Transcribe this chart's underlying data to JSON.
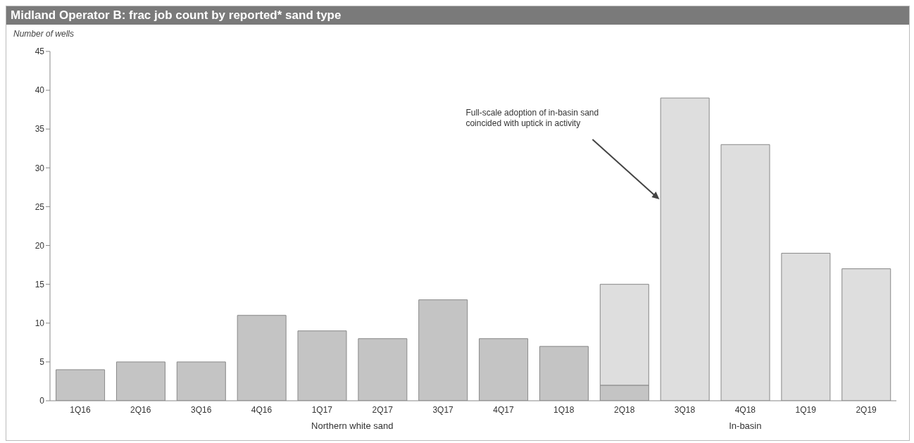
{
  "chart_data": {
    "type": "bar",
    "title": "Midland Operator B: frac job count by reported* sand type",
    "ylabel": "Number of wells",
    "categories": [
      "1Q16",
      "2Q16",
      "3Q16",
      "4Q16",
      "1Q17",
      "2Q17",
      "3Q17",
      "4Q17",
      "1Q18",
      "2Q18",
      "3Q18",
      "4Q18",
      "1Q19",
      "2Q19"
    ],
    "series": [
      {
        "name": "Northern white sand",
        "color": "#c4c4c4",
        "values": [
          4,
          5,
          5,
          11,
          9,
          8,
          13,
          8,
          7,
          2,
          null,
          null,
          null,
          null
        ]
      },
      {
        "name": "In-basin",
        "color": "#dedede",
        "values": [
          null,
          null,
          null,
          null,
          null,
          null,
          null,
          null,
          null,
          13,
          39,
          33,
          19,
          17
        ]
      }
    ],
    "stacked": true,
    "ylim": [
      0,
      45
    ],
    "yticks": [
      0,
      5,
      10,
      15,
      20,
      25,
      30,
      35,
      40,
      45
    ],
    "grid": false,
    "legend": false,
    "annotations": [
      "Full-scale adoption of in-basin sand coincided with uptick in activity"
    ]
  }
}
